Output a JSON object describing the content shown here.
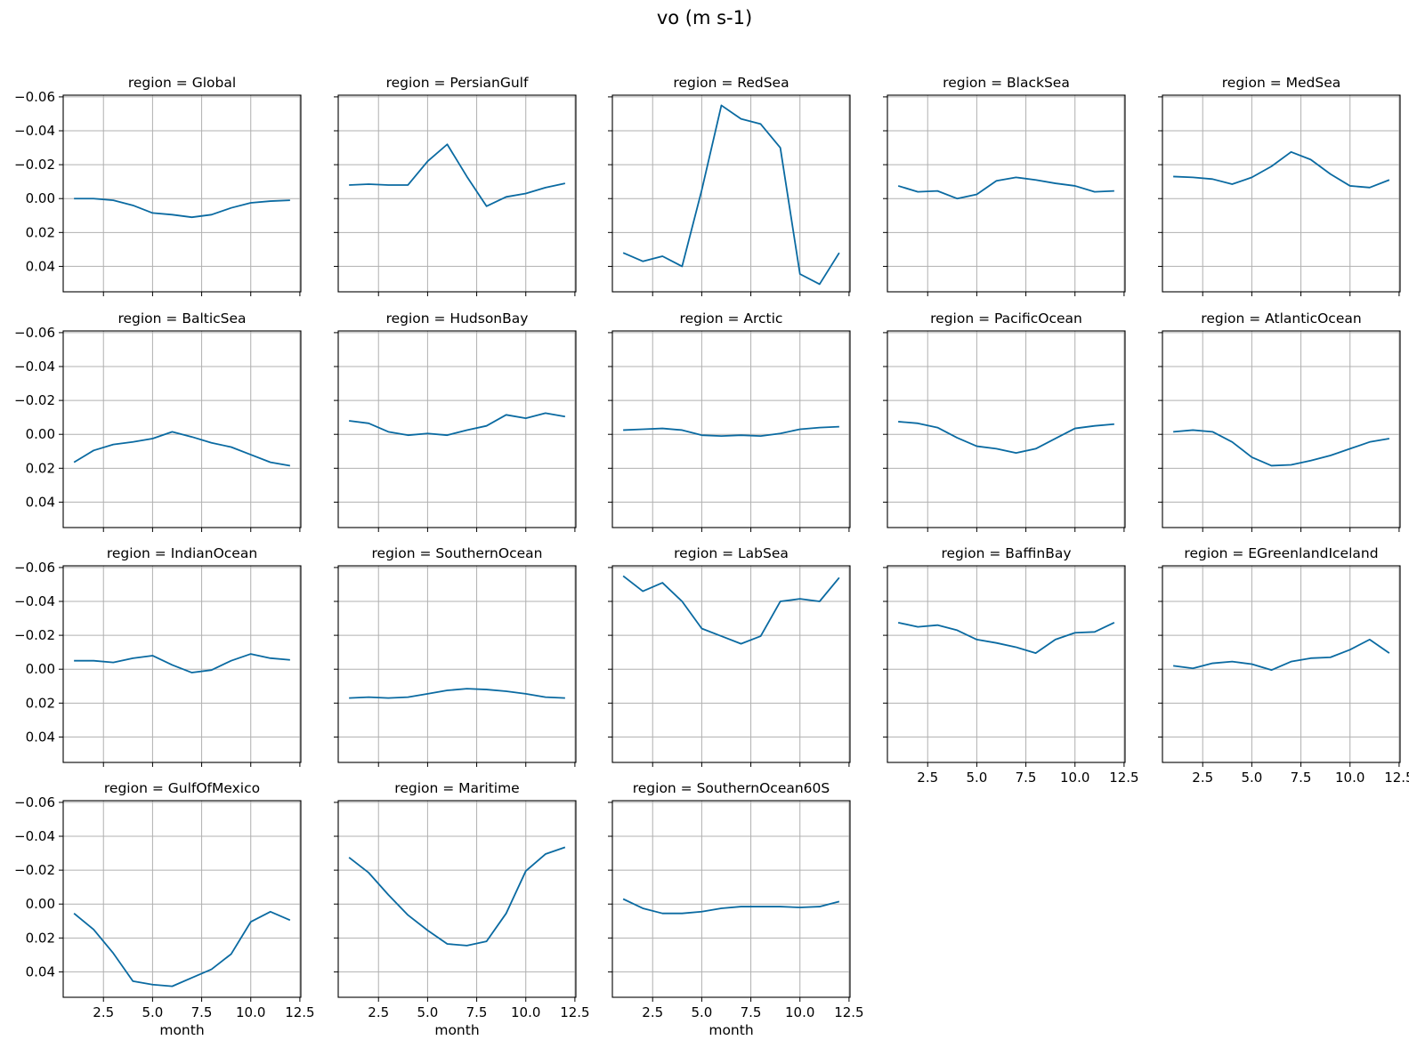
{
  "figure": {
    "suptitle": "vo (m s-1)"
  },
  "chart_data": {
    "type": "line",
    "title": "vo (m s-1)",
    "xlabel": "month",
    "ylabel": "",
    "xlim": [
      0.45,
      12.55
    ],
    "ylim": [
      0.055,
      -0.061
    ],
    "y_axis_inverted": true,
    "grid": true,
    "line_color": "#0a6aa1",
    "xticks": [
      2.5,
      5.0,
      7.5,
      10.0,
      12.5
    ],
    "xtick_labels": [
      "2.5",
      "5.0",
      "7.5",
      "10.0",
      "12.5"
    ],
    "yticks": [
      -0.06,
      -0.04,
      -0.02,
      0.0,
      0.02,
      0.04
    ],
    "ytick_labels": [
      "−0.06",
      "−0.04",
      "−0.02",
      "0.00",
      "0.02",
      "0.04"
    ],
    "x": [
      1,
      2,
      3,
      4,
      5,
      6,
      7,
      8,
      9,
      10,
      11,
      12
    ],
    "panels": [
      {
        "title": "region = Global",
        "values": [
          0.0,
          0.0,
          0.001,
          0.004,
          0.0085,
          0.0095,
          0.011,
          0.0095,
          0.0055,
          0.0025,
          0.0015,
          0.001
        ]
      },
      {
        "title": "region = PersianGulf",
        "values": [
          -0.008,
          -0.0085,
          -0.008,
          -0.008,
          -0.022,
          -0.032,
          -0.013,
          0.0045,
          -0.001,
          -0.003,
          -0.0065,
          -0.009
        ]
      },
      {
        "title": "region = RedSea",
        "values": [
          0.032,
          0.037,
          0.034,
          0.04,
          -0.005,
          -0.055,
          -0.047,
          -0.044,
          -0.03,
          0.0445,
          0.0505,
          0.032
        ]
      },
      {
        "title": "region = BlackSea",
        "values": [
          -0.0075,
          -0.004,
          -0.0045,
          0.0,
          -0.0025,
          -0.0105,
          -0.0125,
          -0.011,
          -0.009,
          -0.0075,
          -0.004,
          -0.0045
        ]
      },
      {
        "title": "region = MedSea",
        "values": [
          -0.013,
          -0.0125,
          -0.0115,
          -0.0085,
          -0.0125,
          -0.019,
          -0.0275,
          -0.023,
          -0.0145,
          -0.0075,
          -0.0065,
          -0.011
        ]
      },
      {
        "title": "region = BalticSea",
        "values": [
          0.0165,
          0.0095,
          0.006,
          0.0045,
          0.0025,
          -0.0015,
          0.0015,
          0.005,
          0.0075,
          0.012,
          0.0165,
          0.0185
        ]
      },
      {
        "title": "region = HudsonBay",
        "values": [
          -0.008,
          -0.0065,
          -0.0015,
          0.0005,
          -0.0005,
          0.0005,
          -0.0025,
          -0.005,
          -0.0115,
          -0.0095,
          -0.0125,
          -0.0105
        ]
      },
      {
        "title": "region = Arctic",
        "values": [
          -0.0025,
          -0.003,
          -0.0035,
          -0.0025,
          0.0005,
          0.001,
          0.0005,
          0.001,
          -0.0005,
          -0.003,
          -0.004,
          -0.0045
        ]
      },
      {
        "title": "region = PacificOcean",
        "values": [
          -0.0075,
          -0.0065,
          -0.004,
          0.002,
          0.007,
          0.0085,
          0.011,
          0.0085,
          0.0025,
          -0.0035,
          -0.005,
          -0.006
        ]
      },
      {
        "title": "region = AtlanticOcean",
        "values": [
          -0.0015,
          -0.0025,
          -0.0015,
          0.0045,
          0.0135,
          0.0185,
          0.018,
          0.0155,
          0.0125,
          0.0085,
          0.0045,
          0.0025
        ]
      },
      {
        "title": "region = IndianOcean",
        "values": [
          -0.005,
          -0.005,
          -0.004,
          -0.0065,
          -0.008,
          -0.0025,
          0.002,
          0.0005,
          -0.005,
          -0.009,
          -0.0065,
          -0.0055
        ]
      },
      {
        "title": "region = SouthernOcean",
        "values": [
          0.017,
          0.0165,
          0.017,
          0.0165,
          0.0145,
          0.0125,
          0.0115,
          0.012,
          0.013,
          0.0145,
          0.0165,
          0.017
        ]
      },
      {
        "title": "region = LabSea",
        "values": [
          -0.055,
          -0.046,
          -0.051,
          -0.04,
          -0.024,
          -0.0195,
          -0.015,
          -0.0195,
          -0.04,
          -0.0415,
          -0.04,
          -0.054
        ]
      },
      {
        "title": "region = BaffinBay",
        "values": [
          -0.0275,
          -0.025,
          -0.026,
          -0.023,
          -0.0175,
          -0.0155,
          -0.013,
          -0.0095,
          -0.0175,
          -0.0215,
          -0.022,
          -0.0275
        ]
      },
      {
        "title": "region = EGreenlandIceland",
        "values": [
          -0.002,
          -0.0005,
          -0.0035,
          -0.0045,
          -0.003,
          0.0005,
          -0.0045,
          -0.0065,
          -0.007,
          -0.0115,
          -0.0175,
          -0.0095
        ]
      },
      {
        "title": "region = GulfOfMexico",
        "values": [
          0.0055,
          0.015,
          0.029,
          0.0455,
          0.0475,
          0.0485,
          0.0435,
          0.0385,
          0.0295,
          0.0105,
          0.0045,
          0.0095
        ]
      },
      {
        "title": "region = Maritime",
        "values": [
          -0.0275,
          -0.0185,
          -0.0055,
          0.0065,
          0.0155,
          0.0235,
          0.0245,
          0.022,
          0.0055,
          -0.0195,
          -0.0295,
          -0.0335
        ]
      },
      {
        "title": "region = SouthernOcean60S",
        "values": [
          -0.003,
          0.0025,
          0.0055,
          0.0055,
          0.0045,
          0.0025,
          0.0015,
          0.0015,
          0.0015,
          0.002,
          0.0015,
          -0.0015
        ]
      }
    ]
  }
}
